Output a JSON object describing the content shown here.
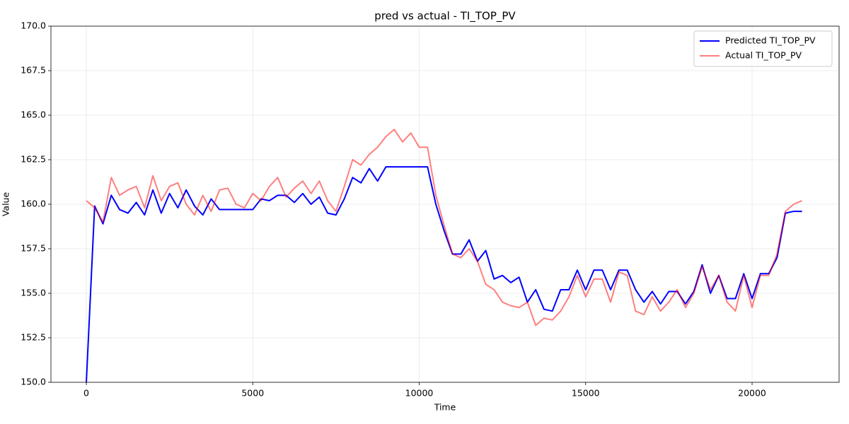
{
  "chart_data": {
    "type": "line",
    "title": "pred vs actual - TI_TOP_PV",
    "x_label": "Time",
    "y_label": "Value",
    "x": [
      0,
      250,
      500,
      750,
      1000,
      1250,
      1500,
      1750,
      2000,
      2250,
      2500,
      2750,
      3000,
      3250,
      3500,
      3750,
      4000,
      4250,
      4500,
      4750,
      5000,
      5250,
      5500,
      5750,
      6000,
      6250,
      6500,
      6750,
      7000,
      7250,
      7500,
      7750,
      8000,
      8250,
      8500,
      8750,
      9000,
      9250,
      9500,
      9750,
      10000,
      10250,
      10500,
      10750,
      11000,
      11250,
      11500,
      11750,
      12000,
      12250,
      12500,
      12750,
      13000,
      13250,
      13500,
      13750,
      14000,
      14250,
      14500,
      14750,
      15000,
      15250,
      15500,
      15750,
      16000,
      16250,
      16500,
      16750,
      17000,
      17250,
      17500,
      17750,
      18000,
      18250,
      18500,
      18750,
      19000,
      19250,
      19500,
      19750,
      20000,
      20250,
      20500,
      20750,
      21000,
      21250,
      21500
    ],
    "series": [
      {
        "name": "Predicted TI_TOP_PV",
        "color": "#0000ff",
        "alpha": 1,
        "values": [
          150,
          159.9,
          158.9,
          160.5,
          159.7,
          159.5,
          160.1,
          159.4,
          160.8,
          159.5,
          160.6,
          159.8,
          160.8,
          159.9,
          159.4,
          160.3,
          159.7,
          159.7,
          159.7,
          159.7,
          159.7,
          160.3,
          160.2,
          160.5,
          160.5,
          160.1,
          160.6,
          160.0,
          160.4,
          159.5,
          159.4,
          160.3,
          161.5,
          161.2,
          162.0,
          161.3,
          162.1,
          162.1,
          162.1,
          162.1,
          162.1,
          162.1,
          160.0,
          158.5,
          157.2,
          157.2,
          158.0,
          156.8,
          157.4,
          155.8,
          156.0,
          155.6,
          155.9,
          154.5,
          155.2,
          154.1,
          154.0,
          155.2,
          155.2,
          156.3,
          155.2,
          156.3,
          156.3,
          155.2,
          156.3,
          156.3,
          155.2,
          154.5,
          155.1,
          154.4,
          155.1,
          155.1,
          154.4,
          155.1,
          156.6,
          155.0,
          156.0,
          154.7,
          154.7,
          156.1,
          154.7,
          156.1,
          156.1,
          157.0,
          159.5,
          159.6,
          159.6
        ]
      },
      {
        "name": "Actual TI_TOP_PV",
        "color": "#ff0000",
        "alpha": 0.5,
        "values": [
          160.2,
          159.8,
          159.0,
          161.5,
          160.5,
          160.8,
          161.0,
          159.8,
          161.6,
          160.2,
          161.0,
          161.2,
          160.0,
          159.4,
          160.5,
          159.6,
          160.8,
          160.9,
          160.0,
          159.8,
          160.6,
          160.2,
          161.0,
          161.5,
          160.4,
          160.9,
          161.3,
          160.6,
          161.3,
          160.2,
          159.6,
          161.0,
          162.5,
          162.2,
          162.8,
          163.2,
          163.8,
          164.2,
          163.5,
          164.0,
          163.2,
          163.2,
          160.5,
          158.8,
          157.2,
          157.0,
          157.5,
          156.8,
          155.5,
          155.2,
          154.5,
          154.3,
          154.2,
          154.5,
          153.2,
          153.6,
          153.5,
          154.0,
          154.8,
          156.0,
          154.8,
          155.8,
          155.8,
          154.5,
          156.2,
          156.0,
          154.0,
          153.8,
          154.8,
          154.0,
          154.5,
          155.2,
          154.2,
          155.0,
          156.5,
          155.2,
          156.0,
          154.5,
          154.0,
          156.0,
          154.2,
          156.0,
          156.0,
          157.2,
          159.6,
          160.0,
          160.2
        ]
      }
    ],
    "xlim": [
      -1063,
      22614
    ],
    "xticks": [
      0,
      5000,
      10000,
      15000,
      20000
    ],
    "ylim": [
      150,
      170
    ],
    "yticks": [
      {
        "value": 150,
        "label": "150.0"
      },
      152.5,
      {
        "value": 155,
        "label": "155.0"
      },
      157.5,
      {
        "value": 160,
        "label": "160.0"
      },
      162.5,
      {
        "value": 165,
        "label": "165.0"
      },
      167.5,
      {
        "value": 170,
        "label": "170.0"
      }
    ],
    "grid": true,
    "legend": "upper right"
  }
}
